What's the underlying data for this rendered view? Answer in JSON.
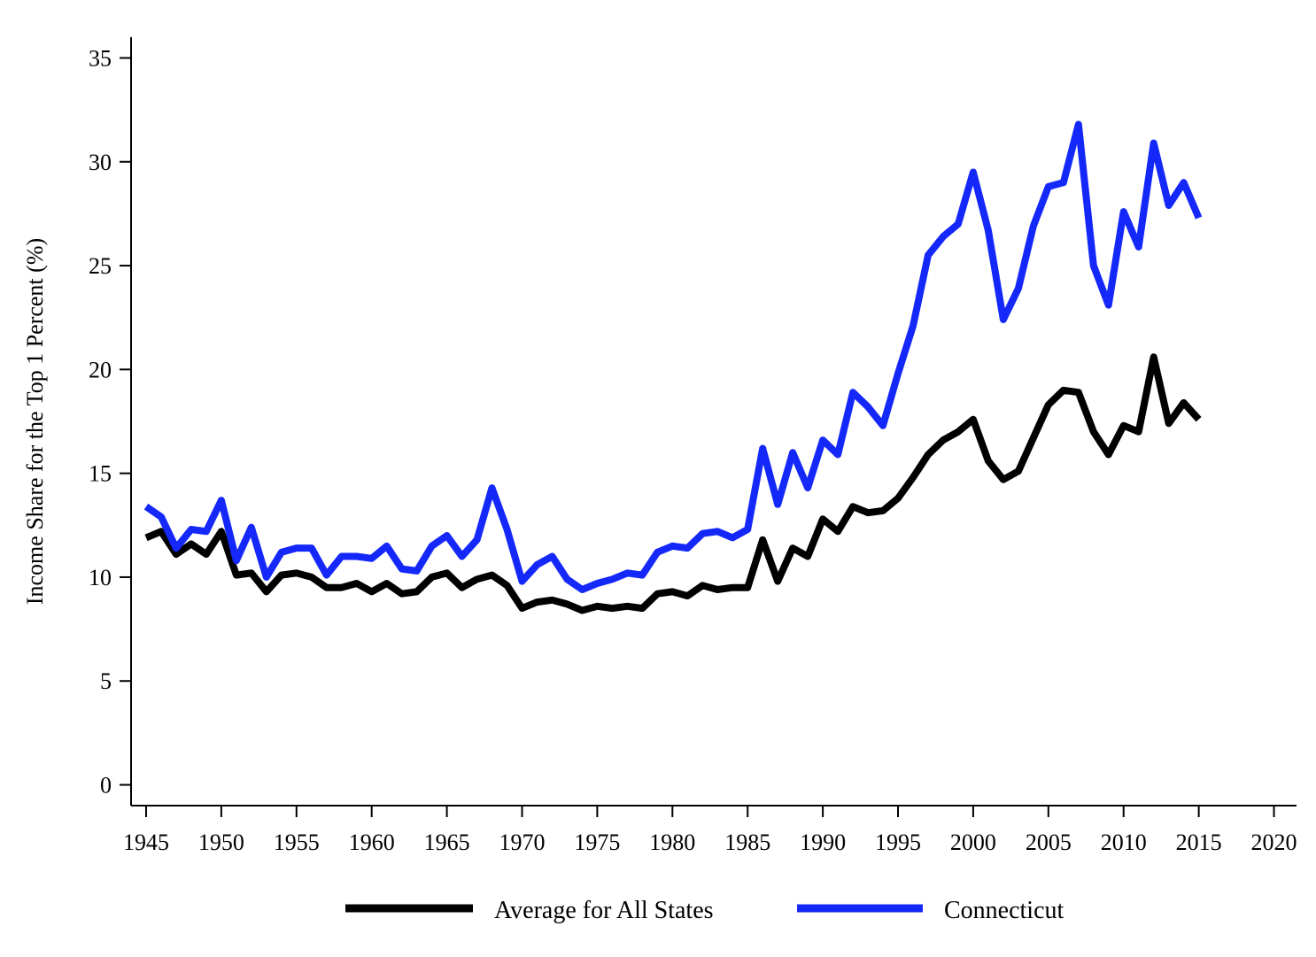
{
  "chart_data": {
    "type": "line",
    "title": "",
    "xlabel": "",
    "ylabel": "Income Share for the Top 1 Percent (%)",
    "xlim": [
      1944,
      2021.5
    ],
    "ylim": [
      -1,
      36
    ],
    "x_ticks": [
      1945,
      1950,
      1955,
      1960,
      1965,
      1970,
      1975,
      1980,
      1985,
      1990,
      1995,
      2000,
      2005,
      2010,
      2015,
      2020
    ],
    "y_ticks": [
      0,
      5,
      10,
      15,
      20,
      25,
      30,
      35
    ],
    "grid": false,
    "legend_position": "bottom",
    "x": [
      1945,
      1946,
      1947,
      1948,
      1949,
      1950,
      1951,
      1952,
      1953,
      1954,
      1955,
      1956,
      1957,
      1958,
      1959,
      1960,
      1961,
      1962,
      1963,
      1964,
      1965,
      1966,
      1967,
      1968,
      1969,
      1970,
      1971,
      1972,
      1973,
      1974,
      1975,
      1976,
      1977,
      1978,
      1979,
      1980,
      1981,
      1982,
      1983,
      1984,
      1985,
      1986,
      1987,
      1988,
      1989,
      1990,
      1991,
      1992,
      1993,
      1994,
      1995,
      1996,
      1997,
      1998,
      1999,
      2000,
      2001,
      2002,
      2003,
      2004,
      2005,
      2006,
      2007,
      2008,
      2009,
      2010,
      2011,
      2012,
      2013,
      2014,
      2015
    ],
    "series": [
      {
        "name": "Average for All States",
        "color": "#000000",
        "values": [
          11.9,
          12.2,
          11.1,
          11.6,
          11.1,
          12.2,
          10.1,
          10.2,
          9.3,
          10.1,
          10.2,
          10.0,
          9.5,
          9.5,
          9.7,
          9.3,
          9.7,
          9.2,
          9.3,
          10.0,
          10.2,
          9.5,
          9.9,
          10.1,
          9.6,
          8.5,
          8.8,
          8.9,
          8.7,
          8.4,
          8.6,
          8.5,
          8.6,
          8.5,
          9.2,
          9.3,
          9.1,
          9.6,
          9.4,
          9.5,
          9.5,
          11.8,
          9.8,
          11.4,
          11.0,
          12.8,
          12.2,
          13.4,
          13.1,
          13.2,
          13.8,
          14.8,
          15.9,
          16.6,
          17.0,
          17.6,
          15.6,
          14.7,
          15.1,
          16.7,
          18.3,
          19.0,
          18.9,
          17.0,
          15.9,
          17.3,
          17.0,
          20.6,
          17.4,
          18.4,
          17.6
        ]
      },
      {
        "name": "Connecticut",
        "color": "#1428fa",
        "values": [
          13.4,
          12.9,
          11.4,
          12.3,
          12.2,
          13.7,
          10.8,
          12.4,
          10.0,
          11.2,
          11.4,
          11.4,
          10.1,
          11.0,
          11.0,
          10.9,
          11.5,
          10.4,
          10.3,
          11.5,
          12.0,
          11.0,
          11.8,
          14.3,
          12.3,
          9.8,
          10.6,
          11.0,
          9.9,
          9.4,
          9.7,
          9.9,
          10.2,
          10.1,
          11.2,
          11.5,
          11.4,
          12.1,
          12.2,
          11.9,
          12.3,
          16.2,
          13.5,
          16.0,
          14.3,
          16.6,
          15.9,
          18.9,
          18.2,
          17.3,
          19.8,
          22.1,
          25.5,
          26.4,
          27.0,
          29.5,
          26.7,
          22.4,
          23.9,
          26.9,
          28.8,
          29.0,
          31.8,
          25.0,
          23.1,
          27.6,
          25.9,
          30.9,
          27.9,
          29.0,
          27.3
        ]
      }
    ]
  }
}
